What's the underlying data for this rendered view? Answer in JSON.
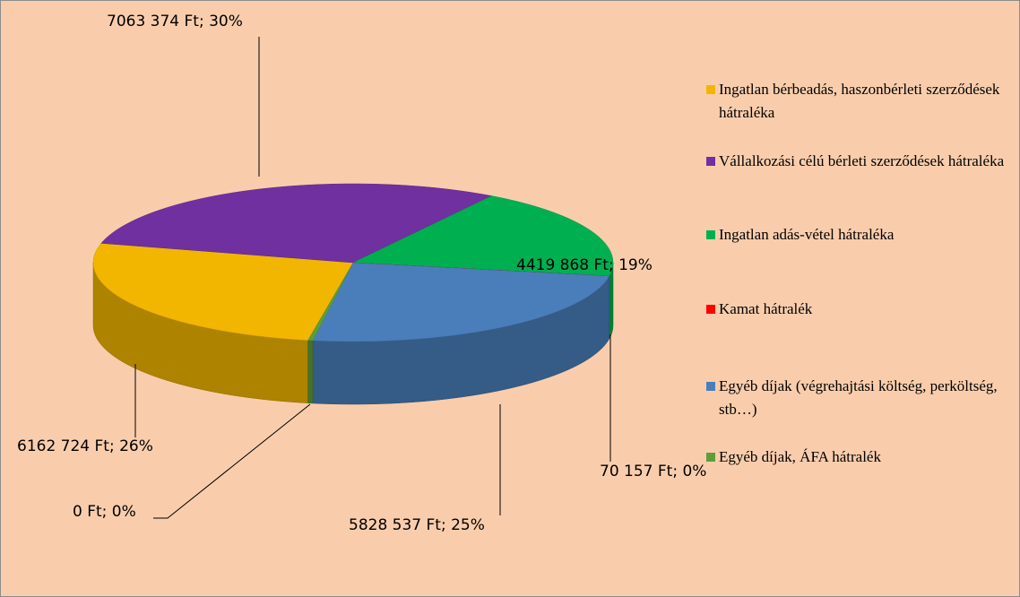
{
  "chart_data": {
    "type": "pie3d",
    "categories": [
      "Ingatlan bérbeadás, haszonbérleti szerződések hátraléka",
      "Vállalkozási célú bérleti szerződések hátraléka",
      "Ingatlan adás-vétel hátraléka",
      "Kamat hátralék",
      "Egyéb díjak (végrehajtási költség, perköltség, stb…)",
      "Egyéb díjak, ÁFA hátralék"
    ],
    "values": [
      6162724,
      7063374,
      4419868,
      0,
      5828537,
      70157
    ],
    "value_labels": [
      "6162 724 Ft; 26%",
      "7063 374 Ft; 30%",
      "4419 868 Ft; 19%",
      "0 Ft; 0%",
      "5828 537 Ft; 25%",
      "70 157 Ft; 0%"
    ],
    "colors": [
      "#f2b600",
      "#7030a0",
      "#00b050",
      "#ff0000",
      "#4a7ebb",
      "#5e9e3a"
    ],
    "legend": "right"
  }
}
